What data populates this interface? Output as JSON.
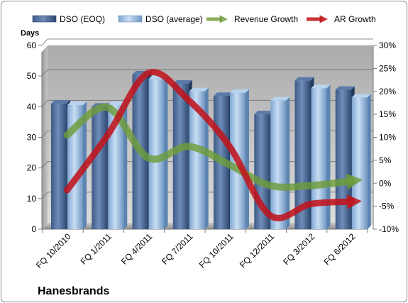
{
  "chart_data": {
    "type": "bar",
    "title": "",
    "company": "Hanesbrands",
    "ylabel": "Days",
    "categories": [
      "FQ 10/2010",
      "FQ 1/2011",
      "FQ 4/2011",
      "FQ 7/2011",
      "FQ 10/2011",
      "FQ 12/2011",
      "FQ 3/2012",
      "FQ 6/2012"
    ],
    "x_tick_labels": [
      "FQ 10/2010",
      "FQ 1/2011",
      "FQ 4/2011",
      "FQ 7/2011",
      "FQ 10/2011",
      "FQ 12/2011",
      "FQ 3/2012",
      "FQ 6/2012"
    ],
    "ylim": [
      0,
      60
    ],
    "y_ticks": [
      0,
      10,
      20,
      30,
      40,
      50,
      60
    ],
    "y2lim": [
      -10,
      30
    ],
    "y2_tick_labels": [
      "-10%",
      "-5%",
      "0%",
      "5%",
      "10%",
      "15%",
      "20%",
      "25%",
      "30%"
    ],
    "y2_ticks": [
      -10,
      -5,
      0,
      5,
      10,
      15,
      20,
      25,
      30
    ],
    "grid": true,
    "legend_position": "top",
    "series": [
      {
        "name": "DSO (EOQ)",
        "kind": "bar",
        "axis": "left",
        "color": "#4f6d9a",
        "values": [
          41,
          40,
          50.5,
          47.5,
          43.5,
          37.5,
          48.5,
          45.5
        ]
      },
      {
        "name": "DSO (average)",
        "kind": "bar",
        "axis": "left",
        "color": "#9ec3ea",
        "values": [
          40.5,
          40.5,
          49,
          45,
          44.5,
          42,
          46,
          43
        ]
      },
      {
        "name": "Revenue Growth",
        "kind": "line",
        "axis": "right",
        "color": "#6e9c3a",
        "values": [
          10.5,
          16.5,
          5.5,
          8,
          4,
          -0.5,
          -0.5,
          0.5
        ]
      },
      {
        "name": "AR Growth",
        "kind": "line",
        "axis": "right",
        "color": "#c0141c",
        "values": [
          -1.5,
          10.5,
          24,
          18,
          8,
          -7,
          -4.5,
          -4
        ]
      }
    ]
  }
}
